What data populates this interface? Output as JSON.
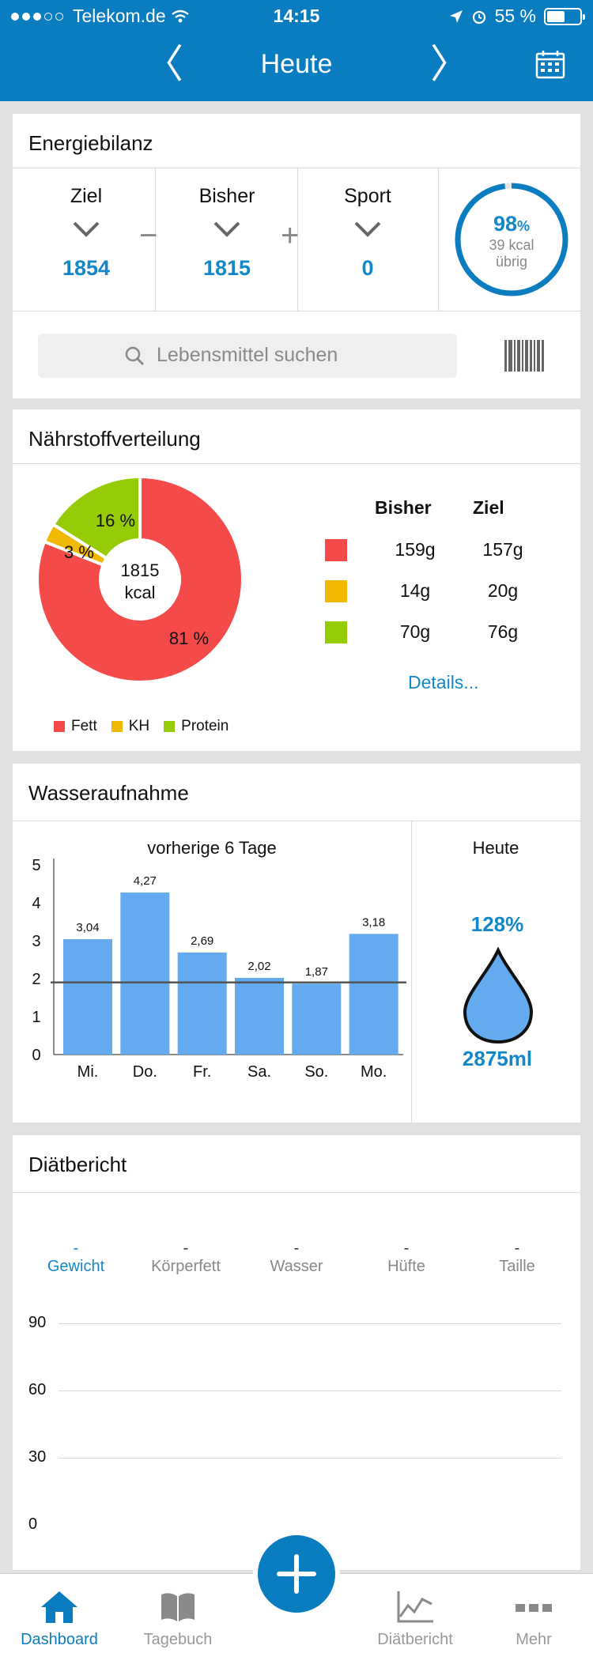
{
  "status_bar": {
    "carrier": "Telekom.de",
    "time": "14:15",
    "battery": "55 %"
  },
  "nav": {
    "title": "Heute",
    "prev": "〈",
    "next": "〉"
  },
  "energy": {
    "title": "Energiebilanz",
    "ziel_label": "Ziel",
    "ziel_value": "1854",
    "bisher_label": "Bisher",
    "bisher_value": "1815",
    "sport_label": "Sport",
    "sport_value": "0",
    "minus": "−",
    "plus": "+",
    "ring_percent": "98",
    "ring_percent_sign": "%",
    "ring_fraction": 0.98,
    "ring_kcal": "39 kcal",
    "ring_remaining": "übrig"
  },
  "search": {
    "placeholder": "Lebensmittel suchen"
  },
  "nutrients": {
    "title": "Nährstoffverteilung",
    "center_value": "1815",
    "center_unit": "kcal",
    "slices": [
      {
        "label": "81 %",
        "value": 81,
        "color": "#f44a4a"
      },
      {
        "label": "3 %",
        "value": 3,
        "color": "#f0b800"
      },
      {
        "label": "16 %",
        "value": 16,
        "color": "#95cc06"
      }
    ],
    "head_bisher": "Bisher",
    "head_ziel": "Ziel",
    "rows": [
      {
        "bisher": "159g",
        "ziel": "157g",
        "color": "#f44a4a"
      },
      {
        "bisher": "14g",
        "ziel": "20g",
        "color": "#f0b800"
      },
      {
        "bisher": "70g",
        "ziel": "76g",
        "color": "#95cc06"
      }
    ],
    "details_link": "Details...",
    "legend": [
      {
        "label": "Fett",
        "color": "#f44a4a"
      },
      {
        "label": "KH",
        "color": "#f0b800"
      },
      {
        "label": "Protein",
        "color": "#95cc06"
      }
    ]
  },
  "water": {
    "title": "Wasseraufnahme",
    "chart_title": "vorherige 6 Tage",
    "today_label": "Heute",
    "today_percent": "128%",
    "today_ml": "2875ml"
  },
  "chart_data": {
    "type": "bar",
    "title": "vorherige 6 Tage",
    "categories": [
      "Mi.",
      "Do.",
      "Fr.",
      "Sa.",
      "So.",
      "Mo."
    ],
    "values": [
      3.04,
      4.27,
      2.69,
      2.02,
      1.87,
      3.18
    ],
    "value_labels": [
      "3,04",
      "4,27",
      "2,69",
      "2,02",
      "1,87",
      "3,18"
    ],
    "target_line": 1.9,
    "yticks": [
      0,
      1,
      2,
      3,
      4,
      5
    ],
    "ylim": [
      0,
      5
    ],
    "bar_color": "#64aaee",
    "grid": false
  },
  "diet": {
    "title": "Diätbericht",
    "metrics": [
      {
        "dash": "-",
        "label": "Gewicht"
      },
      {
        "dash": "-",
        "label": "Körperfett"
      },
      {
        "dash": "-",
        "label": "Wasser"
      },
      {
        "dash": "-",
        "label": "Hüfte"
      },
      {
        "dash": "-",
        "label": "Taille"
      }
    ],
    "grid_labels": [
      "90",
      "60",
      "30",
      "0"
    ]
  },
  "tabbar": {
    "tabs": [
      {
        "label": "Dashboard"
      },
      {
        "label": "Tagebuch"
      },
      {
        "label": "Diätbericht"
      },
      {
        "label": "Mehr"
      }
    ]
  },
  "colors": {
    "brand": "#0a7cc0",
    "accent_text": "#1387c8"
  }
}
